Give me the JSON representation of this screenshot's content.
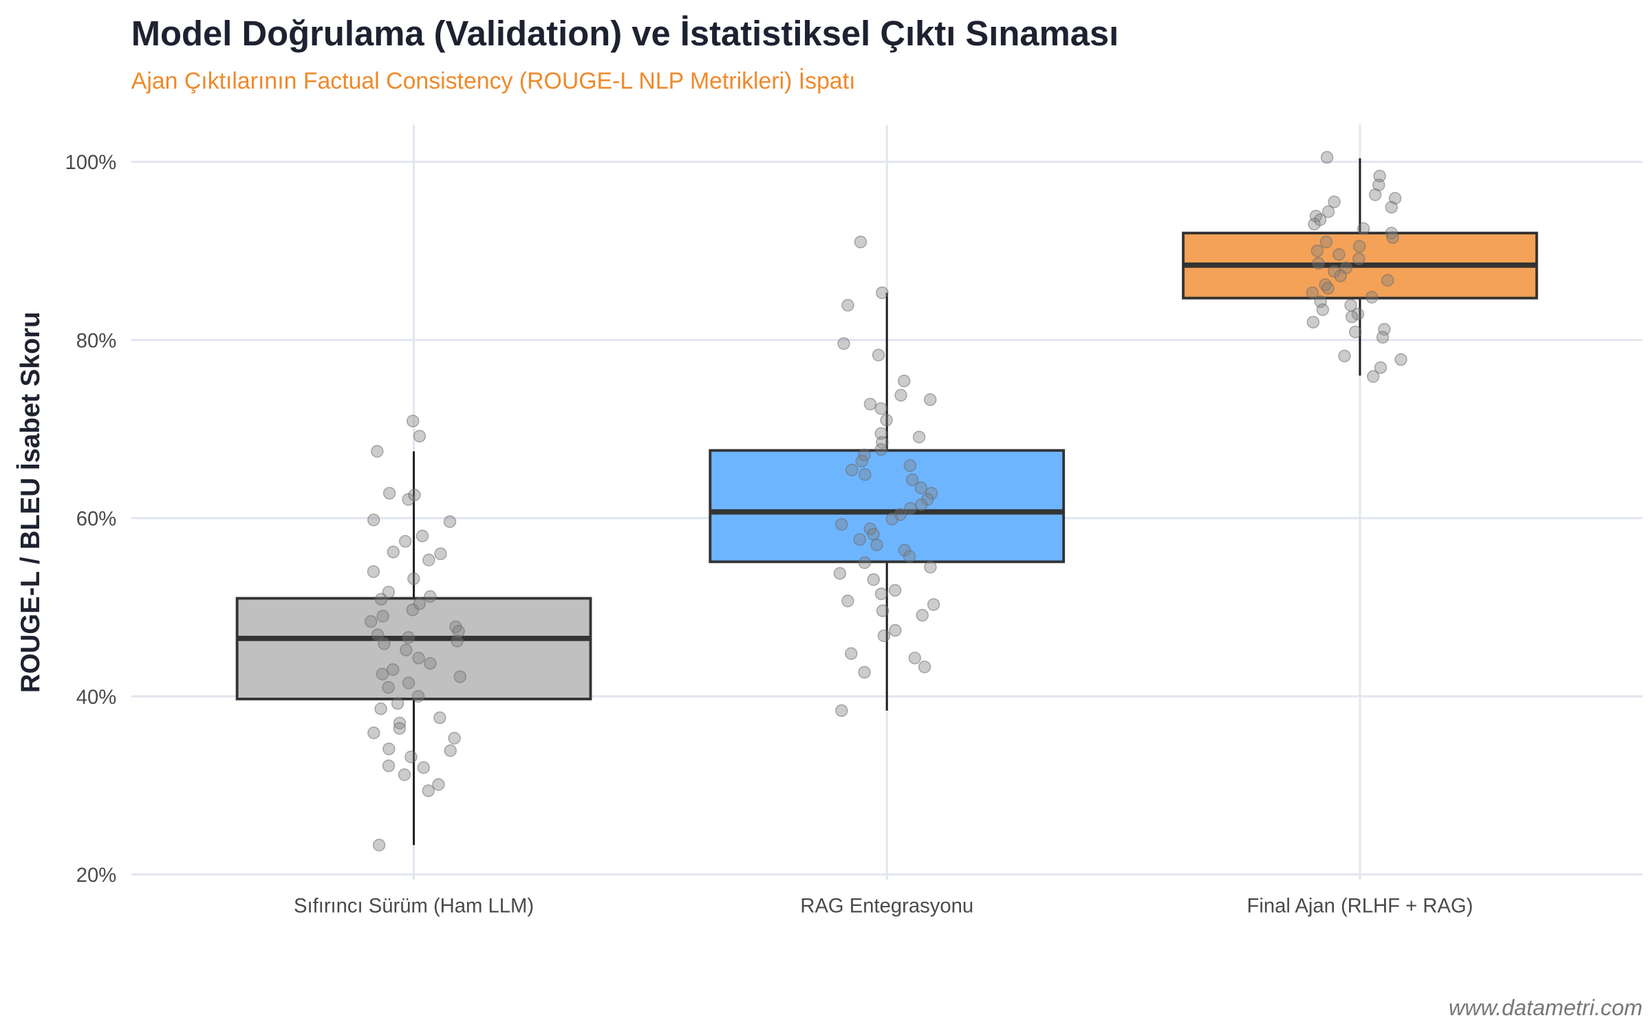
{
  "chart_data": {
    "type": "box",
    "title": "Model Doğrulama (Validation) ve İstatistiksel Çıktı Sınaması",
    "subtitle": "Ajan Çıktılarının Factual Consistency (ROUGE-L NLP Metrikleri) İspatı",
    "xlabel": "",
    "ylabel": "ROUGE-L / BLEU İsabet Skoru",
    "ylim": [
      20,
      100
    ],
    "yticks": [
      20,
      40,
      60,
      80,
      100
    ],
    "ytick_labels": [
      "20%",
      "40%",
      "60%",
      "80%",
      "100%"
    ],
    "grid": true,
    "caption": "www.datametri.com",
    "categories": [
      "Sıfırıncı Sürüm (Ham LLM)",
      "RAG Entegrasyonu",
      "Final Ajan (RLHF + RAG)"
    ],
    "colors": [
      "#c0c0c0",
      "#6eb5ff",
      "#f4a258"
    ],
    "point_color": "#808080",
    "boxes": [
      {
        "whisker_low": 23.3,
        "q1": 39.7,
        "median": 46.5,
        "q3": 51.0,
        "whisker_high": 67.5
      },
      {
        "whisker_low": 38.4,
        "q1": 55.1,
        "median": 60.7,
        "q3": 67.6,
        "whisker_high": 85.3
      },
      {
        "whisker_low": 76.0,
        "q1": 84.7,
        "median": 88.4,
        "q3": 92.0,
        "whisker_high": 100.4
      }
    ],
    "points": [
      [
        70.9,
        69.2,
        67.5,
        62.8,
        62.1,
        62.6,
        59.8,
        59.6,
        58.0,
        57.4,
        56.2,
        56.0,
        55.3,
        54.0,
        53.2,
        51.7,
        51.2,
        50.9,
        50.4,
        49.7,
        49.0,
        48.4,
        47.8,
        47.3,
        46.9,
        46.6,
        46.2,
        45.9,
        45.2,
        44.3,
        43.7,
        43.0,
        42.5,
        42.2,
        41.5,
        41.0,
        40.0,
        39.2,
        38.6,
        37.6,
        37.0,
        36.4,
        35.9,
        35.3,
        34.1,
        33.9,
        33.2,
        32.2,
        32.0,
        31.2,
        30.1,
        29.4,
        23.3
      ],
      [
        91.0,
        85.3,
        83.9,
        79.6,
        78.3,
        75.4,
        73.8,
        73.3,
        72.8,
        72.3,
        71.0,
        69.5,
        69.1,
        68.5,
        67.7,
        67.1,
        66.4,
        65.9,
        65.4,
        64.9,
        64.3,
        63.4,
        62.8,
        62.1,
        61.5,
        61.1,
        60.4,
        59.9,
        59.3,
        58.8,
        58.2,
        57.6,
        57.0,
        56.4,
        55.7,
        55.0,
        54.5,
        53.8,
        53.1,
        51.9,
        51.5,
        50.7,
        50.3,
        49.6,
        49.1,
        47.4,
        46.8,
        44.8,
        44.3,
        43.3,
        42.7,
        38.4
      ],
      [
        100.5,
        98.4,
        97.4,
        96.3,
        95.9,
        95.5,
        94.9,
        94.4,
        93.9,
        93.5,
        93.0,
        92.5,
        92.0,
        91.5,
        91.0,
        90.5,
        90.0,
        89.6,
        89.1,
        88.6,
        88.1,
        87.7,
        87.2,
        86.7,
        86.2,
        85.8,
        85.3,
        84.8,
        84.3,
        83.9,
        83.4,
        82.9,
        82.6,
        82.0,
        81.2,
        80.9,
        80.3,
        78.2,
        77.8,
        76.9,
        75.9
      ]
    ]
  }
}
